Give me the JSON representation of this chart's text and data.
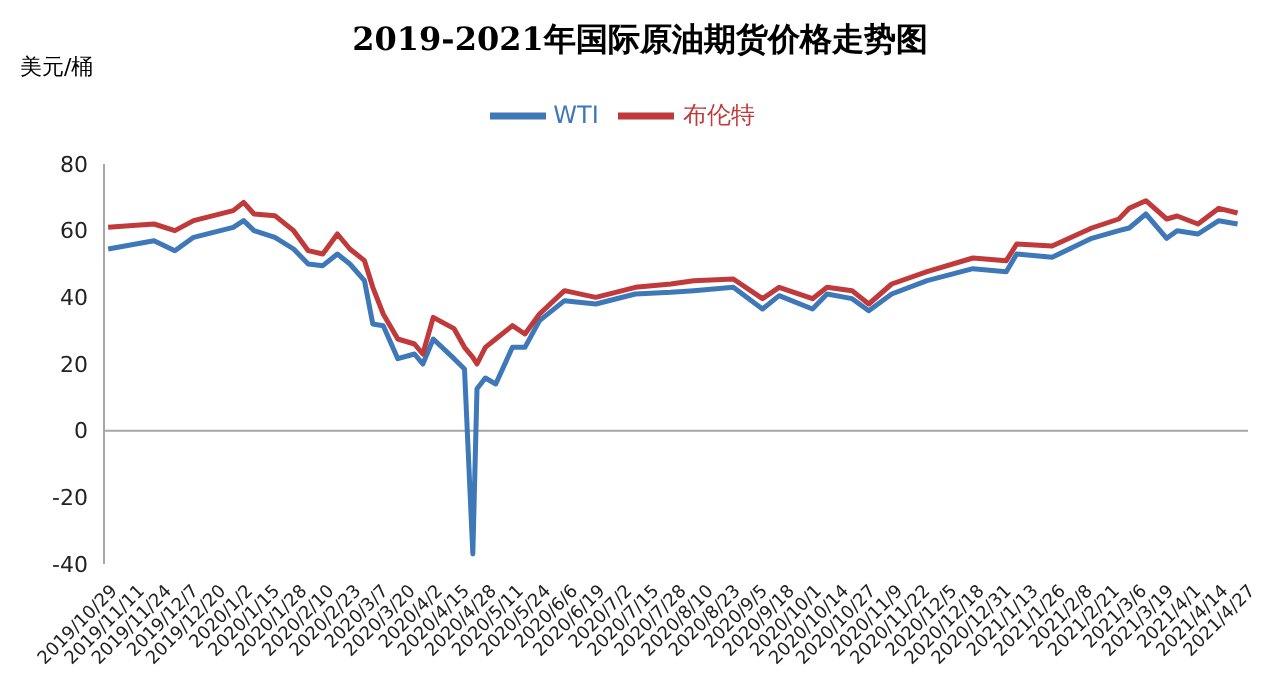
{
  "chart_data": {
    "type": "line",
    "title": "2019-2021年国际原油期货价格走势图",
    "ylabel": "美元/桶",
    "x": [
      "2019-10-28",
      "2019-11-19",
      "2019-11-29",
      "2019-12-08",
      "2019-12-27",
      "2020-01-01",
      "2020-01-06",
      "2020-01-16",
      "2020-01-25",
      "2020-02-01",
      "2020-02-08",
      "2020-02-15",
      "2020-02-21",
      "2020-02-28",
      "2020-03-03",
      "2020-03-08",
      "2020-03-15",
      "2020-03-23",
      "2020-03-27",
      "2020-04-01",
      "2020-04-11",
      "2020-04-16",
      "2020-04-20",
      "2020-04-22",
      "2020-04-26",
      "2020-05-01",
      "2020-05-09",
      "2020-05-15",
      "2020-05-22",
      "2020-06-03",
      "2020-06-18",
      "2020-07-07",
      "2020-07-24",
      "2020-08-04",
      "2020-08-23",
      "2020-09-06",
      "2020-09-14",
      "2020-09-30",
      "2020-10-07",
      "2020-10-19",
      "2020-10-27",
      "2020-11-07",
      "2020-11-24",
      "2020-12-16",
      "2021-01-01",
      "2021-01-06",
      "2021-01-23",
      "2021-02-11",
      "2021-02-24",
      "2021-03-01",
      "2021-03-09",
      "2021-03-19",
      "2021-03-24",
      "2021-04-03",
      "2021-04-13",
      "2021-04-22"
    ],
    "series": [
      {
        "name": "WTI",
        "color": "#3f78b8",
        "values": [
          54.5,
          57,
          54,
          58,
          61,
          63,
          60,
          58,
          54.5,
          50,
          49.5,
          53,
          50,
          45,
          32,
          31.5,
          21.6,
          23,
          20,
          27.5,
          21.6,
          18.5,
          -37,
          12.6,
          15.8,
          14,
          25,
          25,
          33,
          39,
          38,
          41,
          41.5,
          42,
          43,
          36.5,
          40.5,
          36.5,
          41,
          39.6,
          36,
          41,
          45,
          48.6,
          47.7,
          53,
          52,
          57.7,
          60,
          60.8,
          65,
          57.7,
          60,
          59,
          63,
          62
        ]
      },
      {
        "name": "布伦特",
        "color": "#c0393b",
        "values": [
          61,
          62,
          60,
          63,
          66,
          68.5,
          65,
          64.5,
          60,
          54,
          53,
          59,
          54.5,
          51,
          43,
          35,
          27.5,
          26,
          23,
          34,
          30.6,
          25,
          22,
          20,
          25,
          27.5,
          31.5,
          29,
          35,
          42,
          40,
          43,
          44,
          45,
          45.5,
          39.6,
          43,
          39.6,
          43,
          42,
          38,
          44,
          47.7,
          51.8,
          51,
          56,
          55.4,
          60.8,
          63.5,
          66.7,
          69,
          63.5,
          64.4,
          62,
          66.7,
          65.3
        ]
      }
    ],
    "xlim": [
      "2019-10-26",
      "2021-04-27"
    ],
    "xticks": [
      {
        "value": "2019-10-29",
        "label": "2019/10/29"
      },
      {
        "value": "2019-11-11",
        "label": "2019/11/11"
      },
      {
        "value": "2019-11-24",
        "label": "2019/11/24"
      },
      {
        "value": "2019-12-07",
        "label": "2019/12/7"
      },
      {
        "value": "2019-12-20",
        "label": "2019/12/20"
      },
      {
        "value": "2020-01-02",
        "label": "2020/1/2"
      },
      {
        "value": "2020-01-15",
        "label": "2020/1/15"
      },
      {
        "value": "2020-01-28",
        "label": "2020/1/28"
      },
      {
        "value": "2020-02-10",
        "label": "2020/2/10"
      },
      {
        "value": "2020-02-23",
        "label": "2020/2/23"
      },
      {
        "value": "2020-03-07",
        "label": "2020/3/7"
      },
      {
        "value": "2020-03-20",
        "label": "2020/3/20"
      },
      {
        "value": "2020-04-02",
        "label": "2020/4/2"
      },
      {
        "value": "2020-04-15",
        "label": "2020/4/15"
      },
      {
        "value": "2020-04-28",
        "label": "2020/4/28"
      },
      {
        "value": "2020-05-11",
        "label": "2020/5/11"
      },
      {
        "value": "2020-05-24",
        "label": "2020/5/24"
      },
      {
        "value": "2020-06-06",
        "label": "2020/6/6"
      },
      {
        "value": "2020-06-19",
        "label": "2020/6/19"
      },
      {
        "value": "2020-07-02",
        "label": "2020/7/2"
      },
      {
        "value": "2020-07-15",
        "label": "2020/7/15"
      },
      {
        "value": "2020-07-28",
        "label": "2020/7/28"
      },
      {
        "value": "2020-08-10",
        "label": "2020/8/10"
      },
      {
        "value": "2020-08-23",
        "label": "2020/8/23"
      },
      {
        "value": "2020-09-05",
        "label": "2020/9/5"
      },
      {
        "value": "2020-09-18",
        "label": "2020/9/18"
      },
      {
        "value": "2020-10-01",
        "label": "2020/10/1"
      },
      {
        "value": "2020-10-14",
        "label": "2020/10/14"
      },
      {
        "value": "2020-10-27",
        "label": "2020/10/27"
      },
      {
        "value": "2020-11-09",
        "label": "2020/11/9"
      },
      {
        "value": "2020-11-22",
        "label": "2020/11/22"
      },
      {
        "value": "2020-12-05",
        "label": "2020/12/5"
      },
      {
        "value": "2020-12-18",
        "label": "2020/12/18"
      },
      {
        "value": "2020-12-31",
        "label": "2020/12/31"
      },
      {
        "value": "2021-01-13",
        "label": "2021/1/13"
      },
      {
        "value": "2021-01-26",
        "label": "2021/1/26"
      },
      {
        "value": "2021-02-08",
        "label": "2021/2/8"
      },
      {
        "value": "2021-02-21",
        "label": "2021/2/21"
      },
      {
        "value": "2021-03-06",
        "label": "2021/3/6"
      },
      {
        "value": "2021-03-19",
        "label": "2021/3/19"
      },
      {
        "value": "2021-04-01",
        "label": "2021/4/1"
      },
      {
        "value": "2021-04-14",
        "label": "2021/4/14"
      },
      {
        "value": "2021-04-27",
        "label": "2021/4/27"
      }
    ],
    "ylim": [
      -40,
      80
    ],
    "yticks": [
      -40,
      -20,
      0,
      20,
      40,
      60,
      80
    ],
    "ref_lines": [
      {
        "axis": "y",
        "value": 0,
        "color": "#a6a6a6"
      }
    ],
    "grid": false,
    "legend": "top",
    "marker": "none",
    "line_style": "solid"
  }
}
